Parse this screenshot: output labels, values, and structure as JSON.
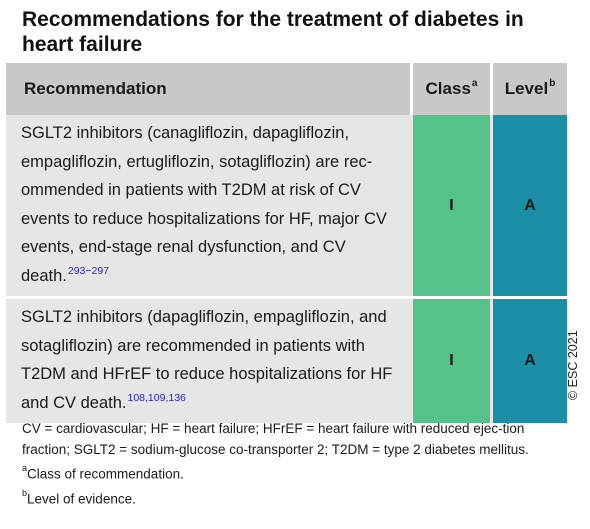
{
  "title": "Recommendations for the treatment of diabetes in heart failure",
  "table": {
    "headers": {
      "recommendation": "Recommendation",
      "class": "Class",
      "class_sup": "a",
      "level": "Level",
      "level_sup": "b"
    },
    "rows": [
      {
        "text": "SGLT2 inhibitors (canagliflozin, dapagliflozin, empagliflozin, ertugliflozin, sotagliflozin) are rec-ommended in patients with T2DM at risk of CV events to reduce hospitalizations for HF, major CV events, end-stage renal dysfunction, and CV death.",
        "refs": "293−297",
        "class": "I",
        "level": "A"
      },
      {
        "text": "SGLT2 inhibitors (dapagliflozin, empagliflozin, and sotagliflozin) are recommended in patients with T2DM and HFrEF to reduce hospitalizations for HF and CV death.",
        "refs": "108,109,136",
        "class": "I",
        "level": "A"
      }
    ]
  },
  "copyright": "© ESC 2021",
  "footnotes": {
    "abbreviations": "CV = cardiovascular; HF = heart failure; HFrEF = heart failure with reduced ejec-tion fraction; SGLT2 = sodium-glucose co-transporter 2; T2DM = type 2 diabetes mellitus.",
    "a_mark": "a",
    "a_text": "Class of recommendation.",
    "b_mark": "b",
    "b_text": "Level of evidence."
  },
  "colors": {
    "header_bg": "#c8c8c8",
    "row_bg": "#e6e6e6",
    "class_green": "#55c28c",
    "level_teal": "#1b8fa6",
    "ref_blue": "#2525d8"
  }
}
